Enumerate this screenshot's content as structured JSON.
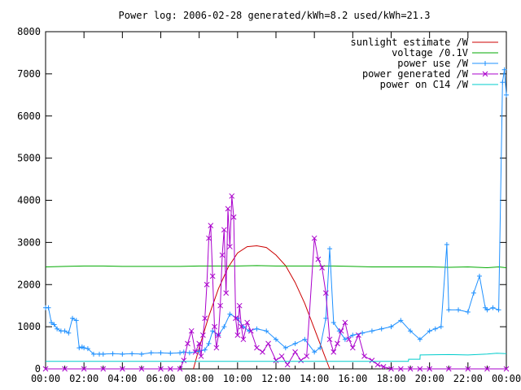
{
  "chart_data": {
    "type": "line",
    "title": "Power log: 2006-02-28 generated/kWh=8.2 used/kWh=21.3",
    "xlabel": "",
    "ylabel": "",
    "xlim": [
      "00:00",
      "24:00"
    ],
    "ylim": [
      0,
      8000
    ],
    "x_ticks": [
      "00:00",
      "02:00",
      "04:00",
      "06:00",
      "08:00",
      "10:00",
      "12:00",
      "14:00",
      "16:00",
      "18:00",
      "20:00",
      "22:00",
      "00:00"
    ],
    "y_ticks": [
      0,
      1000,
      2000,
      3000,
      4000,
      5000,
      6000,
      7000,
      8000
    ],
    "grid": false,
    "legend_position": "top-right",
    "series": [
      {
        "name": "sunlight estimate /W",
        "color": "#cc0000",
        "style": "line",
        "x": [
          7.7,
          8.0,
          8.5,
          9.0,
          9.5,
          10.0,
          10.5,
          11.0,
          11.5,
          12.0,
          12.5,
          13.0,
          13.5,
          14.0,
          14.5,
          14.8
        ],
        "y": [
          0,
          500,
          1250,
          1900,
          2400,
          2750,
          2900,
          2920,
          2880,
          2700,
          2450,
          2050,
          1550,
          950,
          350,
          0
        ]
      },
      {
        "name": "voltage /0.1V",
        "color": "#00aa00",
        "style": "line",
        "x": [
          0,
          1,
          2,
          3,
          4,
          5,
          6,
          7,
          8,
          9,
          10,
          11,
          12,
          13,
          14,
          15,
          16,
          17,
          18,
          19,
          20,
          21,
          22,
          23,
          23.6,
          24
        ],
        "y": [
          2420,
          2430,
          2440,
          2440,
          2430,
          2430,
          2430,
          2430,
          2440,
          2440,
          2440,
          2450,
          2440,
          2440,
          2440,
          2440,
          2430,
          2420,
          2420,
          2420,
          2420,
          2410,
          2420,
          2400,
          2420,
          2400
        ]
      },
      {
        "name": "power use /W",
        "color": "#1e90ff",
        "style": "linespoints",
        "x": [
          0,
          0.15,
          0.3,
          0.45,
          0.6,
          0.8,
          1.0,
          1.2,
          1.4,
          1.6,
          1.75,
          1.9,
          2.0,
          2.2,
          2.5,
          2.8,
          3.0,
          3.5,
          4.0,
          4.5,
          5.0,
          5.5,
          6.0,
          6.5,
          7.0,
          7.2,
          7.5,
          8.0,
          8.3,
          8.5,
          8.7,
          9.0,
          9.3,
          9.6,
          10.0,
          10.3,
          10.6,
          11.0,
          11.5,
          12.0,
          12.5,
          13.0,
          13.5,
          14.0,
          14.3,
          14.6,
          14.8,
          15.0,
          15.3,
          15.6,
          16.0,
          16.5,
          17.0,
          17.5,
          18.0,
          18.5,
          19.0,
          19.5,
          20.0,
          20.3,
          20.6,
          20.9,
          21.0,
          21.5,
          22.0,
          22.3,
          22.6,
          22.9,
          23.0,
          23.3,
          23.6,
          23.8,
          23.9,
          24.0
        ],
        "y": [
          1450,
          1450,
          1100,
          1050,
          950,
          900,
          900,
          850,
          1200,
          1150,
          500,
          520,
          500,
          480,
          350,
          350,
          350,
          360,
          350,
          360,
          350,
          380,
          380,
          370,
          380,
          400,
          380,
          420,
          450,
          600,
          900,
          800,
          1000,
          1300,
          1200,
          1000,
          900,
          950,
          900,
          700,
          500,
          600,
          700,
          400,
          500,
          1200,
          2850,
          1100,
          900,
          700,
          800,
          850,
          900,
          950,
          1000,
          1150,
          900,
          700,
          900,
          950,
          1000,
          2950,
          1400,
          1400,
          1350,
          1800,
          2200,
          1450,
          1400,
          1450,
          1400,
          6800,
          7100,
          6500
        ]
      },
      {
        "name": "power generated /W",
        "color": "#aa00cc",
        "style": "linespoints",
        "x": [
          0,
          1,
          2,
          3,
          4,
          5,
          6,
          6.5,
          7.0,
          7.2,
          7.4,
          7.6,
          7.8,
          8.0,
          8.1,
          8.2,
          8.3,
          8.4,
          8.5,
          8.6,
          8.7,
          8.8,
          8.9,
          9.0,
          9.1,
          9.2,
          9.3,
          9.4,
          9.5,
          9.6,
          9.7,
          9.8,
          9.9,
          10.0,
          10.1,
          10.2,
          10.3,
          10.5,
          10.7,
          11.0,
          11.3,
          11.6,
          12.0,
          12.3,
          12.6,
          13.0,
          13.3,
          13.6,
          14.0,
          14.2,
          14.4,
          14.6,
          14.8,
          15.0,
          15.2,
          15.4,
          15.6,
          15.8,
          16.0,
          16.3,
          16.6,
          17.0,
          17.3,
          17.6,
          18.0,
          18.5,
          19.0,
          19.5,
          20.0,
          21.0,
          22.0,
          23.0,
          24.0
        ],
        "y": [
          0,
          0,
          0,
          0,
          0,
          0,
          0,
          0,
          0,
          200,
          600,
          900,
          400,
          600,
          300,
          800,
          1200,
          2000,
          3100,
          3400,
          2200,
          1000,
          500,
          800,
          1500,
          2700,
          3300,
          1800,
          3800,
          2900,
          4100,
          3600,
          1200,
          800,
          1500,
          1000,
          700,
          1100,
          900,
          500,
          400,
          600,
          200,
          300,
          100,
          400,
          200,
          300,
          3100,
          2600,
          2400,
          1800,
          700,
          400,
          600,
          900,
          1100,
          700,
          500,
          800,
          300,
          200,
          100,
          50,
          0,
          0,
          0,
          0,
          0,
          0,
          0,
          0,
          0
        ]
      },
      {
        "name": "power on C14 /W",
        "color": "#00cccc",
        "style": "line",
        "x": [
          0,
          2.0,
          4.0,
          6.0,
          7.0,
          7.01,
          10.0,
          14.0,
          17.0,
          18.9,
          18.91,
          19.5,
          19.51,
          21.0,
          22.0,
          23.0,
          23.5,
          24.0
        ],
        "y": [
          180,
          180,
          180,
          180,
          180,
          180,
          180,
          180,
          180,
          180,
          230,
          230,
          330,
          340,
          330,
          350,
          370,
          360
        ]
      }
    ]
  }
}
